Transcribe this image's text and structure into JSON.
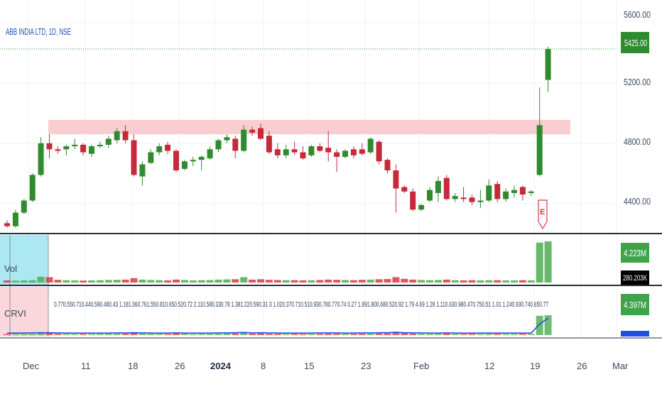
{
  "header": {
    "symbol_title": "ABB INDIA LTD, 1D, NSE",
    "title_color": "#1f4fbf"
  },
  "price_pane": {
    "axis_ticks": [
      "5600.00",
      "5200.00",
      "4800.00",
      "4400.00"
    ],
    "current_price_label": "5425.00",
    "earnings_marker": "E"
  },
  "volume_pane": {
    "label": "Vol",
    "value_label": "4.223M",
    "secondary_label": "280.203K"
  },
  "crvi_pane": {
    "label": "CRVI",
    "value_label": "4.397M",
    "ratio_text": "0.770.550.710.440.590.480.43 1.181.060.761.550.810.650.520.72 2.110.580.330.78 1.381.220.590.31 3  1.020.370.710.510.930.780.770.74 0.27 1.891.800.680.520.92 1.79 4.69 1.28 1.110.630.980.470.750.51 1.01 1.240.930.740.650.77"
  },
  "x_axis": {
    "labels": [
      "Dec",
      "11",
      "18",
      "26",
      "2024",
      "8",
      "15",
      "23",
      "Feb",
      "12",
      "19",
      "26",
      "Mar"
    ]
  },
  "colors": {
    "up": "#2e8b2e",
    "down": "#c62a3a",
    "resistance_zone": "#f8c9cc",
    "volume_highlight": "#8fe0ec",
    "crvi_highlight": "#f8cdd3",
    "crvi_line": "#1e4fe0",
    "price_label_bg": "#2e8b2e",
    "axis_text": "#3a4a63"
  },
  "chart_data": {
    "type": "candlestick",
    "title": "ABB INDIA LTD, 1D, NSE",
    "ylim": [
      4220,
      5750
    ],
    "resistance_zone": [
      4860,
      4955
    ],
    "current_price": 5425.0,
    "candles": [
      {
        "o": 4270,
        "h": 4290,
        "l": 4240,
        "c": 4250
      },
      {
        "o": 4250,
        "h": 4360,
        "l": 4240,
        "c": 4340
      },
      {
        "o": 4340,
        "h": 4430,
        "l": 4330,
        "c": 4420
      },
      {
        "o": 4420,
        "h": 4600,
        "l": 4410,
        "c": 4590
      },
      {
        "o": 4590,
        "h": 4840,
        "l": 4580,
        "c": 4800
      },
      {
        "o": 4800,
        "h": 4860,
        "l": 4700,
        "c": 4760
      },
      {
        "o": 4760,
        "h": 4780,
        "l": 4730,
        "c": 4750
      },
      {
        "o": 4760,
        "h": 4790,
        "l": 4720,
        "c": 4780
      },
      {
        "o": 4780,
        "h": 4830,
        "l": 4760,
        "c": 4790
      },
      {
        "o": 4790,
        "h": 4800,
        "l": 4720,
        "c": 4740
      },
      {
        "o": 4730,
        "h": 4790,
        "l": 4710,
        "c": 4780
      },
      {
        "o": 4780,
        "h": 4810,
        "l": 4770,
        "c": 4790
      },
      {
        "o": 4790,
        "h": 4850,
        "l": 4770,
        "c": 4830
      },
      {
        "o": 4820,
        "h": 4900,
        "l": 4800,
        "c": 4880
      },
      {
        "o": 4880,
        "h": 4920,
        "l": 4800,
        "c": 4820
      },
      {
        "o": 4820,
        "h": 4860,
        "l": 4580,
        "c": 4590
      },
      {
        "o": 4580,
        "h": 4680,
        "l": 4520,
        "c": 4660
      },
      {
        "o": 4670,
        "h": 4760,
        "l": 4660,
        "c": 4740
      },
      {
        "o": 4740,
        "h": 4800,
        "l": 4720,
        "c": 4780
      },
      {
        "o": 4790,
        "h": 4810,
        "l": 4730,
        "c": 4750
      },
      {
        "o": 4750,
        "h": 4760,
        "l": 4610,
        "c": 4620
      },
      {
        "o": 4630,
        "h": 4690,
        "l": 4620,
        "c": 4680
      },
      {
        "o": 4680,
        "h": 4710,
        "l": 4650,
        "c": 4690
      },
      {
        "o": 4690,
        "h": 4720,
        "l": 4620,
        "c": 4710
      },
      {
        "o": 4700,
        "h": 4780,
        "l": 4690,
        "c": 4760
      },
      {
        "o": 4760,
        "h": 4830,
        "l": 4740,
        "c": 4820
      },
      {
        "o": 4820,
        "h": 4860,
        "l": 4800,
        "c": 4840
      },
      {
        "o": 4830,
        "h": 4850,
        "l": 4700,
        "c": 4750
      },
      {
        "o": 4750,
        "h": 4920,
        "l": 4740,
        "c": 4890
      },
      {
        "o": 4890,
        "h": 4910,
        "l": 4850,
        "c": 4870
      },
      {
        "o": 4900,
        "h": 4930,
        "l": 4820,
        "c": 4830
      },
      {
        "o": 4850,
        "h": 4880,
        "l": 4730,
        "c": 4740
      },
      {
        "o": 4760,
        "h": 4800,
        "l": 4700,
        "c": 4720
      },
      {
        "o": 4720,
        "h": 4790,
        "l": 4700,
        "c": 4760
      },
      {
        "o": 4760,
        "h": 4810,
        "l": 4720,
        "c": 4740
      },
      {
        "o": 4740,
        "h": 4780,
        "l": 4690,
        "c": 4700
      },
      {
        "o": 4720,
        "h": 4790,
        "l": 4710,
        "c": 4780
      },
      {
        "o": 4780,
        "h": 4800,
        "l": 4740,
        "c": 4750
      },
      {
        "o": 4770,
        "h": 4880,
        "l": 4680,
        "c": 4740
      },
      {
        "o": 4740,
        "h": 4760,
        "l": 4610,
        "c": 4710
      },
      {
        "o": 4710,
        "h": 4760,
        "l": 4700,
        "c": 4750
      },
      {
        "o": 4760,
        "h": 4780,
        "l": 4700,
        "c": 4720
      },
      {
        "o": 4760,
        "h": 4800,
        "l": 4720,
        "c": 4730
      },
      {
        "o": 4740,
        "h": 4840,
        "l": 4730,
        "c": 4830
      },
      {
        "o": 4810,
        "h": 4820,
        "l": 4660,
        "c": 4680
      },
      {
        "o": 4690,
        "h": 4700,
        "l": 4600,
        "c": 4620
      },
      {
        "o": 4620,
        "h": 4660,
        "l": 4340,
        "c": 4500
      },
      {
        "o": 4510,
        "h": 4520,
        "l": 4470,
        "c": 4480
      },
      {
        "o": 4480,
        "h": 4500,
        "l": 4350,
        "c": 4360
      },
      {
        "o": 4360,
        "h": 4400,
        "l": 4350,
        "c": 4390
      },
      {
        "o": 4420,
        "h": 4510,
        "l": 4410,
        "c": 4490
      },
      {
        "o": 4470,
        "h": 4580,
        "l": 4410,
        "c": 4550
      },
      {
        "o": 4570,
        "h": 4590,
        "l": 4420,
        "c": 4430
      },
      {
        "o": 4430,
        "h": 4470,
        "l": 4410,
        "c": 4450
      },
      {
        "o": 4440,
        "h": 4510,
        "l": 4410,
        "c": 4430
      },
      {
        "o": 4440,
        "h": 4460,
        "l": 4390,
        "c": 4410
      },
      {
        "o": 4410,
        "h": 4490,
        "l": 4370,
        "c": 4420
      },
      {
        "o": 4420,
        "h": 4560,
        "l": 4410,
        "c": 4520
      },
      {
        "o": 4530,
        "h": 4550,
        "l": 4410,
        "c": 4430
      },
      {
        "o": 4430,
        "h": 4500,
        "l": 4410,
        "c": 4480
      },
      {
        "o": 4470,
        "h": 4520,
        "l": 4440,
        "c": 4490
      },
      {
        "o": 4510,
        "h": 4520,
        "l": 4420,
        "c": 4460
      },
      {
        "o": 4470,
        "h": 4490,
        "l": 4450,
        "c": 4480
      },
      {
        "o": 4590,
        "h": 5170,
        "l": 4580,
        "c": 4920
      },
      {
        "o": 5220,
        "h": 5440,
        "l": 5140,
        "c": 5425
      }
    ],
    "volume": [
      0.22,
      0.2,
      0.22,
      0.24,
      0.6,
      0.55,
      0.28,
      0.24,
      0.22,
      0.2,
      0.22,
      0.24,
      0.26,
      0.28,
      0.3,
      0.45,
      0.3,
      0.26,
      0.24,
      0.22,
      0.3,
      0.26,
      0.22,
      0.24,
      0.25,
      0.3,
      0.32,
      0.34,
      0.55,
      0.3,
      0.34,
      0.28,
      0.26,
      0.24,
      0.24,
      0.22,
      0.24,
      0.26,
      0.3,
      0.28,
      0.26,
      0.24,
      0.28,
      0.3,
      0.34,
      0.36,
      0.55,
      0.38,
      0.3,
      0.26,
      0.24,
      0.26,
      0.3,
      0.24,
      0.22,
      0.24,
      0.22,
      0.24,
      0.24,
      0.22,
      0.22,
      0.24,
      0.22,
      4.1,
      4.223
    ],
    "crvi_line": [
      0.1,
      0.1,
      0.1,
      0.11,
      0.12,
      0.12,
      0.11,
      0.1,
      0.1,
      0.1,
      0.1,
      0.1,
      0.1,
      0.11,
      0.11,
      0.12,
      0.11,
      0.1,
      0.1,
      0.1,
      0.11,
      0.1,
      0.1,
      0.1,
      0.1,
      0.11,
      0.11,
      0.12,
      0.13,
      0.11,
      0.12,
      0.11,
      0.1,
      0.1,
      0.1,
      0.1,
      0.1,
      0.11,
      0.11,
      0.11,
      0.1,
      0.1,
      0.11,
      0.11,
      0.12,
      0.12,
      0.14,
      0.12,
      0.11,
      0.11,
      0.1,
      0.1,
      0.11,
      0.1,
      0.1,
      0.1,
      0.1,
      0.1,
      0.1,
      0.1,
      0.1,
      0.1,
      0.1,
      0.55,
      0.85
    ]
  }
}
